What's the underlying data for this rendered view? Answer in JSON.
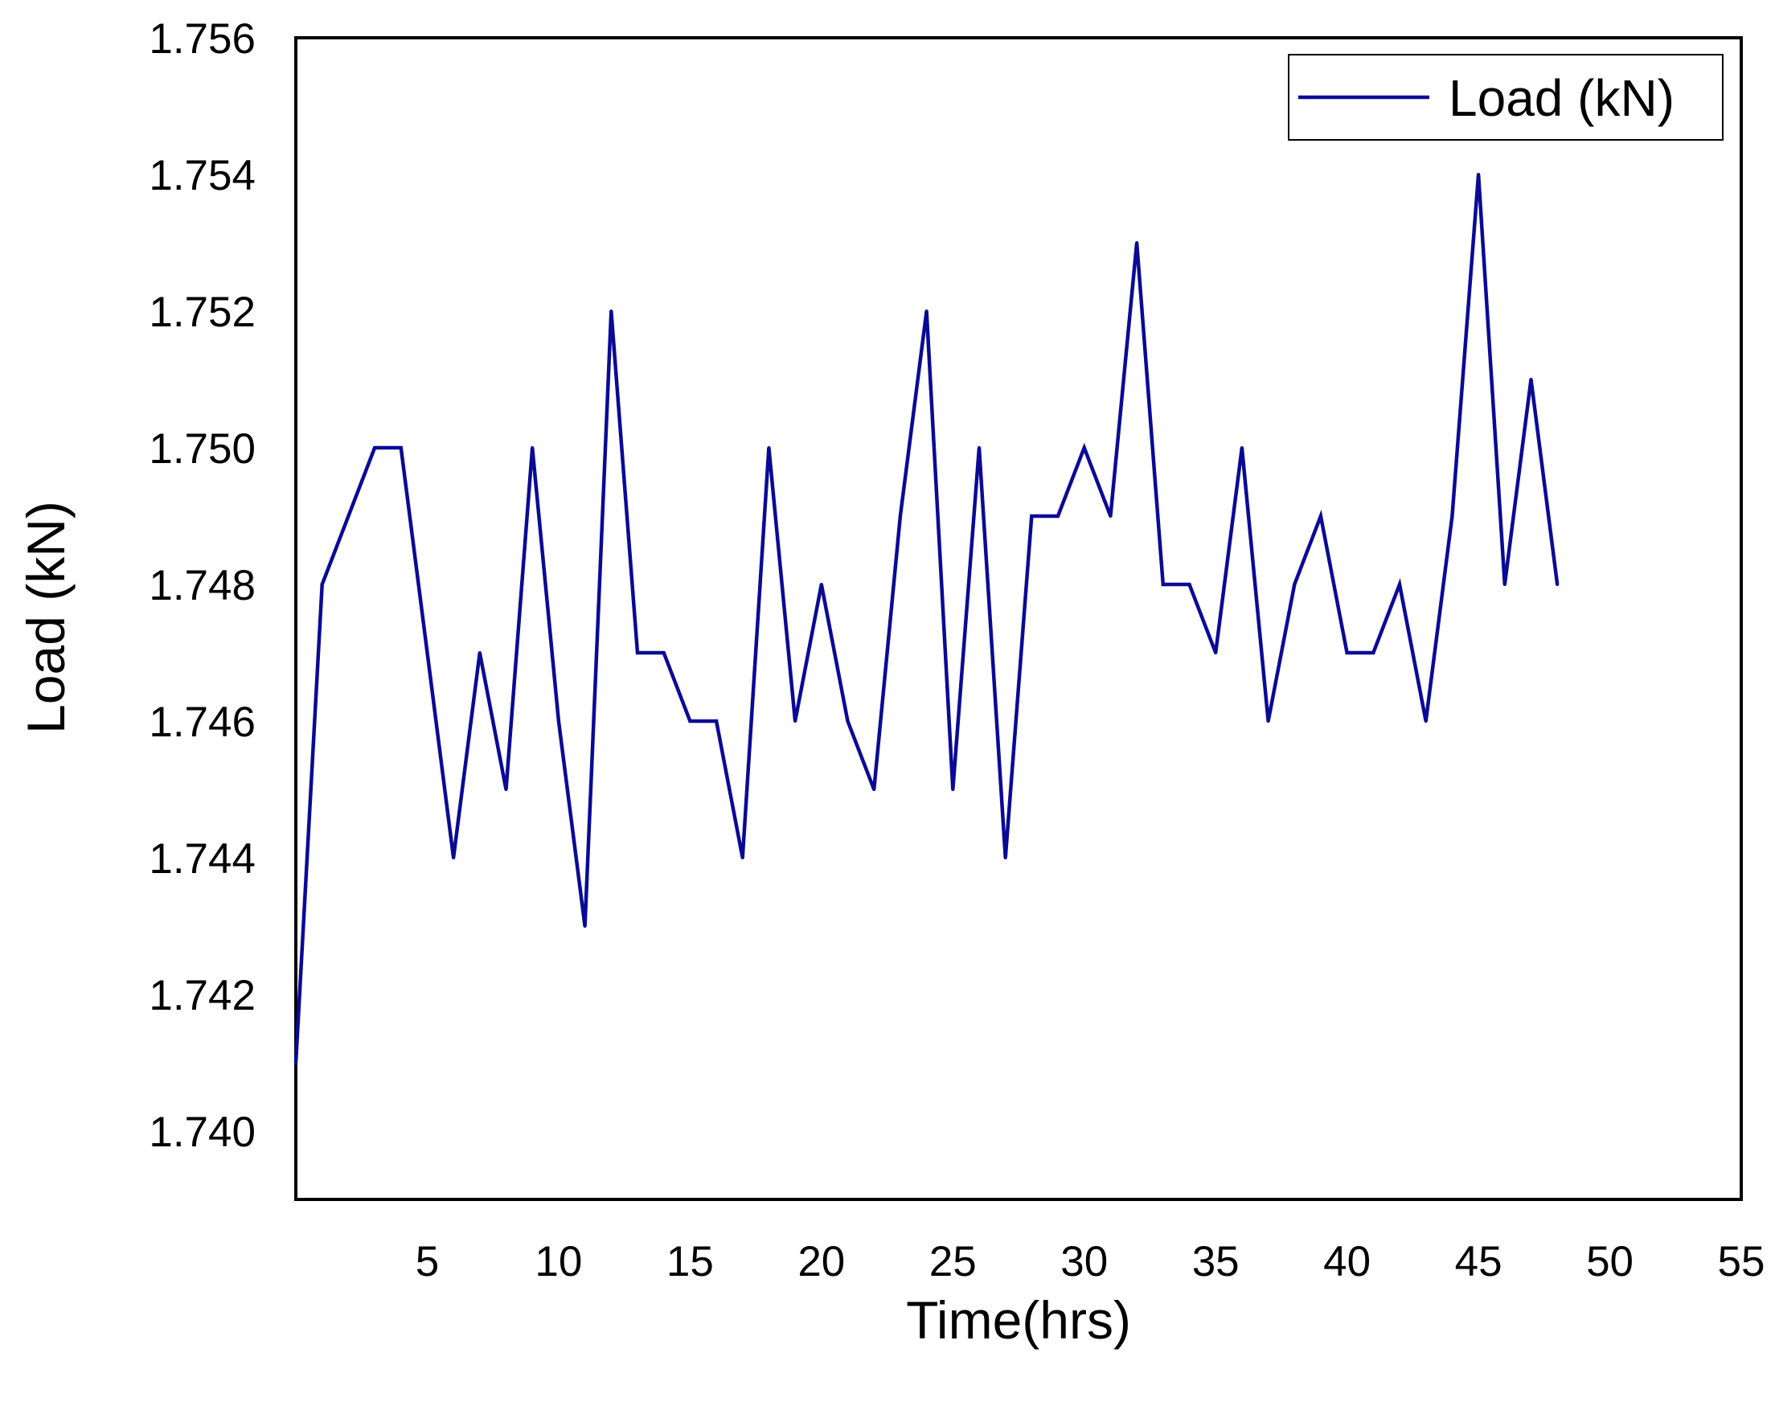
{
  "chart_data": {
    "type": "line",
    "title": "",
    "xlabel": "Time(hrs)",
    "ylabel": "Load (kN)",
    "xlim": [
      0,
      55
    ],
    "ylim": [
      1.739,
      1.756
    ],
    "x_ticks": [
      5,
      10,
      15,
      20,
      25,
      30,
      35,
      40,
      45,
      50,
      55
    ],
    "y_ticks": [
      1.74,
      1.742,
      1.744,
      1.746,
      1.748,
      1.75,
      1.752,
      1.754,
      1.756
    ],
    "y_tick_labels": [
      "1.740",
      "1.742",
      "1.744",
      "1.746",
      "1.748",
      "1.750",
      "1.752",
      "1.754",
      "1.756"
    ],
    "x_tick_labels": [
      "5",
      "10",
      "15",
      "20",
      "25",
      "30",
      "35",
      "40",
      "45",
      "50",
      "55"
    ],
    "legend": {
      "position": "top-right",
      "entries": [
        "Load (kN)"
      ]
    },
    "grid": false,
    "series": [
      {
        "name": "Load (kN)",
        "color": "#0a0a96",
        "x": [
          0,
          1,
          2,
          3,
          4,
          5,
          6,
          7,
          8,
          9,
          10,
          11,
          12,
          13,
          14,
          15,
          16,
          17,
          18,
          19,
          20,
          21,
          22,
          23,
          24,
          25,
          26,
          27,
          28,
          29,
          30,
          31,
          32,
          33,
          34,
          35,
          36,
          37,
          38,
          39,
          40,
          41,
          42,
          43,
          44,
          45,
          46,
          47,
          48
        ],
        "values": [
          1.741,
          1.748,
          1.749,
          1.75,
          1.75,
          1.747,
          1.744,
          1.747,
          1.745,
          1.75,
          1.746,
          1.743,
          1.752,
          1.747,
          1.747,
          1.746,
          1.746,
          1.744,
          1.75,
          1.746,
          1.748,
          1.746,
          1.745,
          1.749,
          1.752,
          1.745,
          1.75,
          1.744,
          1.749,
          1.749,
          1.75,
          1.749,
          1.753,
          1.748,
          1.748,
          1.747,
          1.75,
          1.746,
          1.748,
          1.749,
          1.747,
          1.747,
          1.748,
          1.746,
          1.749,
          1.754,
          1.748,
          1.751,
          1.748
        ]
      }
    ]
  }
}
